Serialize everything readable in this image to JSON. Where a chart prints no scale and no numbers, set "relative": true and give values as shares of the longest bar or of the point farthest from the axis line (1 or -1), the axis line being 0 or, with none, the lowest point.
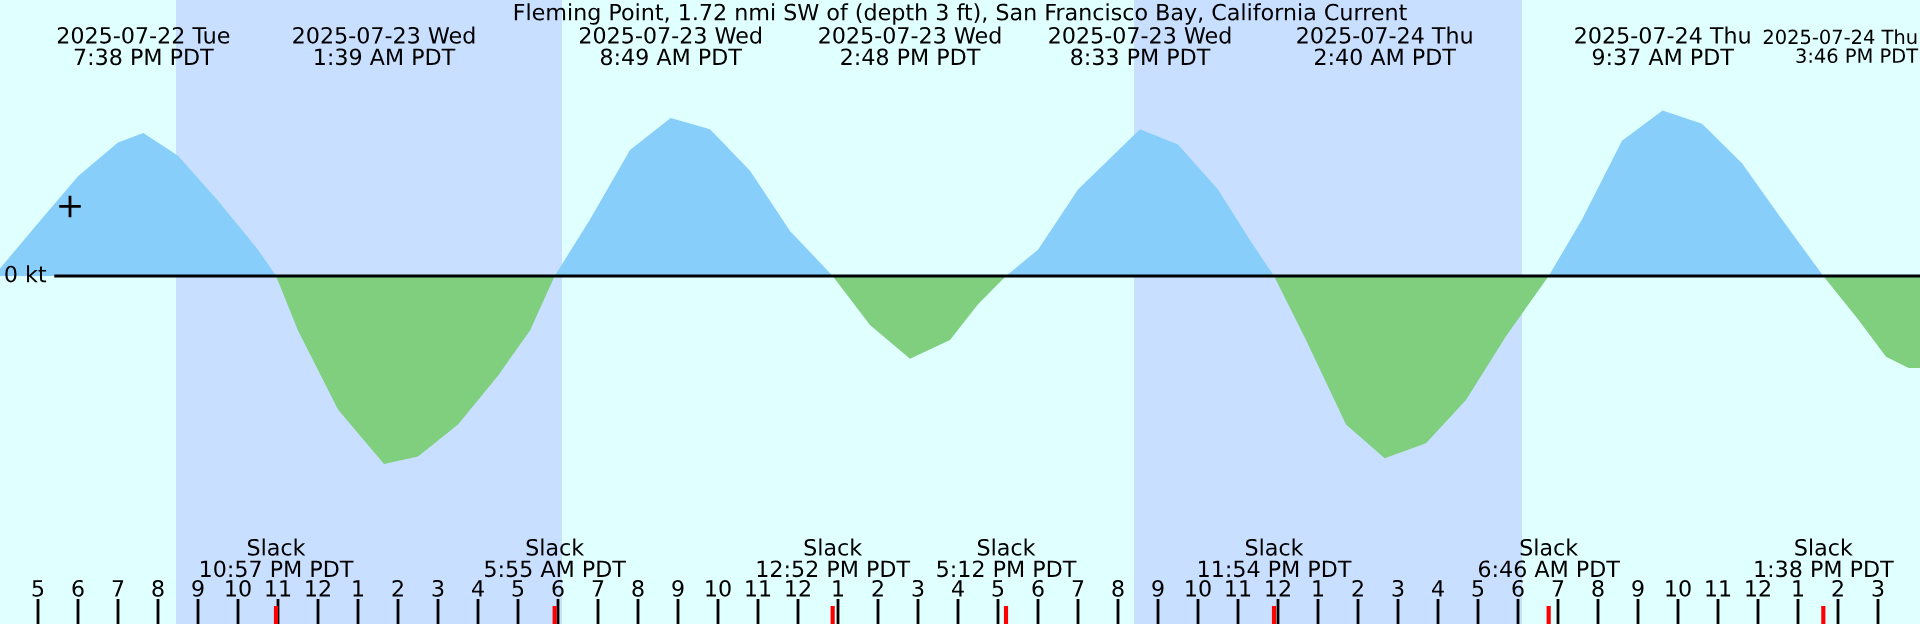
{
  "chart_data": {
    "type": "area",
    "title": "Fleming Point, 1.72 nmi SW of (depth 3 ft), San Francisco Bay, California Current",
    "relative": true,
    "x": [
      "2025-07-22T16:03",
      "2025-07-22T17:00",
      "2025-07-22T18:00",
      "2025-07-22T19:00",
      "2025-07-22T19:38",
      "2025-07-22T20:30",
      "2025-07-22T21:30",
      "2025-07-22T22:30",
      "2025-07-22T22:57",
      "2025-07-22T23:30",
      "2025-07-23T00:30",
      "2025-07-23T01:39",
      "2025-07-23T02:30",
      "2025-07-23T03:30",
      "2025-07-23T04:30",
      "2025-07-23T05:18",
      "2025-07-23T05:55",
      "2025-07-23T06:48",
      "2025-07-23T07:48",
      "2025-07-23T08:49",
      "2025-07-23T09:48",
      "2025-07-23T10:48",
      "2025-07-23T11:48",
      "2025-07-23T12:52",
      "2025-07-23T13:48",
      "2025-07-23T14:48",
      "2025-07-23T15:48",
      "2025-07-23T16:30",
      "2025-07-23T17:12",
      "2025-07-23T18:00",
      "2025-07-23T19:00",
      "2025-07-23T20:33",
      "2025-07-23T21:30",
      "2025-07-23T22:30",
      "2025-07-23T23:18",
      "2025-07-23T23:54",
      "2025-07-24T00:42",
      "2025-07-24T01:42",
      "2025-07-24T02:40",
      "2025-07-24T03:42",
      "2025-07-24T04:42",
      "2025-07-24T05:42",
      "2025-07-24T06:46",
      "2025-07-24T07:36",
      "2025-07-24T08:36",
      "2025-07-24T09:37",
      "2025-07-24T10:36",
      "2025-07-24T11:36",
      "2025-07-24T12:36",
      "2025-07-24T13:38",
      "2025-07-24T14:30",
      "2025-07-24T15:12",
      "2025-07-24T15:46",
      "2025-07-24T16:03"
    ],
    "series": [
      {
        "type": "area",
        "color": "#87cefa",
        "values": [
          0.04,
          0.28,
          0.53,
          0.71,
          0.76,
          0.64,
          0.4,
          0.14,
          0,
          null,
          null,
          null,
          null,
          null,
          null,
          null,
          0,
          0.3,
          0.67,
          0.84,
          0.78,
          0.56,
          0.24,
          0,
          null,
          null,
          null,
          null,
          0,
          0.14,
          0.46,
          0.78,
          0.7,
          0.46,
          0.19,
          0,
          null,
          null,
          null,
          null,
          null,
          null,
          0,
          0.3,
          0.72,
          0.88,
          0.81,
          0.6,
          0.3,
          0,
          null,
          null,
          null,
          null
        ]
      },
      {
        "type": "area",
        "color": "#7fcf7f",
        "values": [
          null,
          null,
          null,
          null,
          null,
          null,
          null,
          null,
          0,
          -0.29,
          -0.71,
          -1,
          -0.96,
          -0.79,
          -0.53,
          -0.29,
          0,
          null,
          null,
          null,
          null,
          null,
          null,
          0,
          -0.26,
          -0.44,
          -0.34,
          -0.15,
          0,
          null,
          null,
          null,
          null,
          null,
          null,
          0,
          -0.34,
          -0.79,
          -0.97,
          -0.89,
          -0.66,
          -0.32,
          0,
          null,
          null,
          null,
          null,
          null,
          null,
          0,
          -0.23,
          -0.43,
          -0.49,
          -0.49
        ]
      },
      {
        "type": "scatter",
        "x": [
          "2025-07-22T17:48"
        ],
        "values": [
          0.37
        ],
        "color": "#000000",
        "marker": "cross"
      }
    ],
    "xlim": [
      "2025-07-22T16:03",
      "2025-07-24T16:03"
    ],
    "xticks": [
      {
        "value": "2025-07-22T17:00",
        "label": "5"
      },
      {
        "value": "2025-07-22T18:00",
        "label": "6"
      },
      {
        "value": "2025-07-22T19:00",
        "label": "7"
      },
      {
        "value": "2025-07-22T20:00",
        "label": "8"
      },
      {
        "value": "2025-07-22T21:00",
        "label": "9"
      },
      {
        "value": "2025-07-22T22:00",
        "label": "10"
      },
      {
        "value": "2025-07-22T23:00",
        "label": "11"
      },
      {
        "value": "2025-07-23T00:00",
        "label": "12"
      },
      {
        "value": "2025-07-23T01:00",
        "label": "1"
      },
      {
        "value": "2025-07-23T02:00",
        "label": "2"
      },
      {
        "value": "2025-07-23T03:00",
        "label": "3"
      },
      {
        "value": "2025-07-23T04:00",
        "label": "4"
      },
      {
        "value": "2025-07-23T05:00",
        "label": "5"
      },
      {
        "value": "2025-07-23T06:00",
        "label": "6"
      },
      {
        "value": "2025-07-23T07:00",
        "label": "7"
      },
      {
        "value": "2025-07-23T08:00",
        "label": "8"
      },
      {
        "value": "2025-07-23T09:00",
        "label": "9"
      },
      {
        "value": "2025-07-23T10:00",
        "label": "10"
      },
      {
        "value": "2025-07-23T11:00",
        "label": "11"
      },
      {
        "value": "2025-07-23T12:00",
        "label": "12"
      },
      {
        "value": "2025-07-23T13:00",
        "label": "1"
      },
      {
        "value": "2025-07-23T14:00",
        "label": "2"
      },
      {
        "value": "2025-07-23T15:00",
        "label": "3"
      },
      {
        "value": "2025-07-23T16:00",
        "label": "4"
      },
      {
        "value": "2025-07-23T17:00",
        "label": "5"
      },
      {
        "value": "2025-07-23T18:00",
        "label": "6"
      },
      {
        "value": "2025-07-23T19:00",
        "label": "7"
      },
      {
        "value": "2025-07-23T20:00",
        "label": "8"
      },
      {
        "value": "2025-07-23T21:00",
        "label": "9"
      },
      {
        "value": "2025-07-23T22:00",
        "label": "10"
      },
      {
        "value": "2025-07-23T23:00",
        "label": "11"
      },
      {
        "value": "2025-07-24T00:00",
        "label": "12"
      },
      {
        "value": "2025-07-24T01:00",
        "label": "1"
      },
      {
        "value": "2025-07-24T02:00",
        "label": "2"
      },
      {
        "value": "2025-07-24T03:00",
        "label": "3"
      },
      {
        "value": "2025-07-24T04:00",
        "label": "4"
      },
      {
        "value": "2025-07-24T05:00",
        "label": "5"
      },
      {
        "value": "2025-07-24T06:00",
        "label": "6"
      },
      {
        "value": "2025-07-24T07:00",
        "label": "7"
      },
      {
        "value": "2025-07-24T08:00",
        "label": "8"
      },
      {
        "value": "2025-07-24T09:00",
        "label": "9"
      },
      {
        "value": "2025-07-24T10:00",
        "label": "10"
      },
      {
        "value": "2025-07-24T11:00",
        "label": "11"
      },
      {
        "value": "2025-07-24T12:00",
        "label": "12"
      },
      {
        "value": "2025-07-24T13:00",
        "label": "1"
      },
      {
        "value": "2025-07-24T14:00",
        "label": "2"
      },
      {
        "value": "2025-07-24T15:00",
        "label": "3"
      }
    ],
    "ref_lines": [
      {
        "axis": "y",
        "value": 0,
        "label": "0 kt",
        "color": "#000000"
      }
    ],
    "bands": [
      {
        "axis": "x",
        "from": "2025-07-22T20:27",
        "to": "2025-07-23T06:06",
        "color": "#c8dfff"
      },
      {
        "axis": "x",
        "from": "2025-07-23T20:24",
        "to": "2025-07-24T06:06",
        "color": "#c8dfff"
      }
    ],
    "annotations": [
      "2025-07-22 Tue\n7:38 PM PDT",
      "2025-07-23 Wed\n1:39 AM PDT",
      "2025-07-23 Wed\n8:49 AM PDT",
      "2025-07-23 Wed\n2:48 PM PDT",
      "2025-07-23 Wed\n8:33 PM PDT",
      "2025-07-24 Thu\n2:40 AM PDT",
      "2025-07-24 Thu\n9:37 AM PDT",
      "2025-07-24 Thu\n3:46 PM PDT",
      "Slack\n10:57 PM PDT",
      "Slack\n5:55 AM PDT",
      "Slack\n12:52 PM PDT",
      "Slack\n5:12 PM PDT",
      "Slack\n11:54 PM PDT",
      "Slack\n6:46 AM PDT",
      "Slack\n1:38 PM PDT"
    ]
  }
}
